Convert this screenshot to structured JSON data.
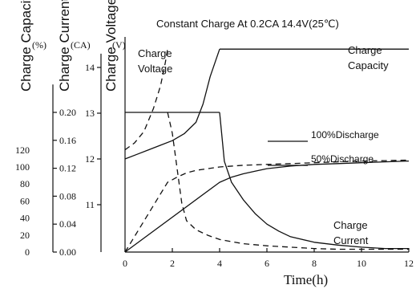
{
  "chart_data": {
    "type": "line",
    "title": "Constant Charge At 0.2CA 14.4V(25℃)",
    "xlabel": "Time(h)",
    "xlim": [
      0,
      12
    ],
    "x_ticks": [
      "0",
      "2",
      "4",
      "6",
      "8",
      "10",
      "12"
    ],
    "axes": [
      {
        "label": "Charge Capacity",
        "unit": "(%)",
        "ticks": [
          "0",
          "20",
          "40",
          "60",
          "80",
          "100",
          "120"
        ],
        "range": [
          0,
          120
        ]
      },
      {
        "label": "Charge Current",
        "unit": "(CA)",
        "ticks": [
          "0.00",
          "0.04",
          "0.08",
          "0.12",
          "0.16",
          "0.20"
        ],
        "range": [
          0,
          0.24
        ]
      },
      {
        "label": "Charge Voltage",
        "unit": "(V)",
        "ticks": [
          "11",
          "12",
          "13",
          "14"
        ],
        "range": [
          10,
          14.2
        ]
      }
    ],
    "legend": [
      {
        "name": "100%Discharge",
        "style": "solid"
      },
      {
        "name": "50%Discharge",
        "style": "dashed"
      }
    ],
    "annotations": {
      "voltage": "Charge\nVoltage",
      "capacity": "Charge\nCapacity",
      "current": "Charge\nCurrent"
    },
    "series": [
      {
        "curve": "voltage",
        "discharge": "100%",
        "style": "solid",
        "points": [
          [
            0,
            12.0
          ],
          [
            0.5,
            12.1
          ],
          [
            1,
            12.2
          ],
          [
            1.5,
            12.3
          ],
          [
            2,
            12.4
          ],
          [
            2.5,
            12.55
          ],
          [
            3,
            12.8
          ],
          [
            3.3,
            13.2
          ],
          [
            3.6,
            13.8
          ],
          [
            3.8,
            14.1
          ],
          [
            4,
            14.4
          ]
        ]
      },
      {
        "curve": "voltage",
        "discharge": "50%",
        "style": "dashed",
        "points": [
          [
            0,
            12.2
          ],
          [
            0.4,
            12.35
          ],
          [
            0.8,
            12.6
          ],
          [
            1.2,
            13.1
          ],
          [
            1.5,
            13.6
          ],
          [
            1.7,
            14.1
          ],
          [
            1.8,
            14.4
          ]
        ]
      },
      {
        "curve": "voltage_hold",
        "style": "solid",
        "points": [
          [
            4,
            14.4
          ],
          [
            12,
            14.4
          ]
        ]
      },
      {
        "curve": "capacity",
        "discharge": "100%",
        "style": "solid",
        "points": [
          [
            0,
            0
          ],
          [
            4,
            82
          ],
          [
            4.5,
            88
          ],
          [
            5,
            92
          ],
          [
            5.5,
            95
          ],
          [
            6,
            98
          ],
          [
            7,
            101
          ],
          [
            8,
            103
          ],
          [
            9,
            104
          ],
          [
            10,
            105
          ],
          [
            11,
            106
          ],
          [
            12,
            107
          ]
        ]
      },
      {
        "curve": "capacity",
        "discharge": "50%",
        "style": "dashed",
        "points": [
          [
            0,
            0
          ],
          [
            1.8,
            82
          ],
          [
            2.2,
            88
          ],
          [
            2.6,
            93
          ],
          [
            3,
            96
          ],
          [
            3.5,
            98
          ],
          [
            4,
            100
          ],
          [
            5,
            102
          ],
          [
            6,
            103
          ],
          [
            7,
            104
          ],
          [
            8,
            105
          ],
          [
            9,
            106
          ],
          [
            10,
            107
          ],
          [
            11,
            107.5
          ],
          [
            12,
            108
          ]
        ]
      },
      {
        "curve": "current",
        "discharge": "100%",
        "style": "solid",
        "points": [
          [
            4,
            0.2
          ],
          [
            4.2,
            0.13
          ],
          [
            4.5,
            0.1
          ],
          [
            5,
            0.075
          ],
          [
            5.5,
            0.055
          ],
          [
            6,
            0.04
          ],
          [
            6.5,
            0.03
          ],
          [
            7,
            0.022
          ],
          [
            8,
            0.014
          ],
          [
            9,
            0.01
          ],
          [
            10,
            0.007
          ],
          [
            11,
            0.005
          ],
          [
            12,
            0.005
          ]
        ]
      },
      {
        "curve": "current",
        "discharge": "50%",
        "style": "dashed",
        "points": [
          [
            1.8,
            0.2
          ],
          [
            2.0,
            0.17
          ],
          [
            2.2,
            0.12
          ],
          [
            2.4,
            0.07
          ],
          [
            2.6,
            0.045
          ],
          [
            3,
            0.032
          ],
          [
            3.5,
            0.024
          ],
          [
            4,
            0.018
          ],
          [
            5,
            0.012
          ],
          [
            6,
            0.009
          ],
          [
            7,
            0.007
          ],
          [
            8,
            0.005
          ],
          [
            9,
            0.004
          ],
          [
            10,
            0.004
          ],
          [
            12,
            0.004
          ]
        ]
      },
      {
        "curve": "current_cc",
        "style": "solid",
        "points": [
          [
            0,
            0.2
          ],
          [
            4,
            0.2
          ]
        ]
      }
    ]
  }
}
